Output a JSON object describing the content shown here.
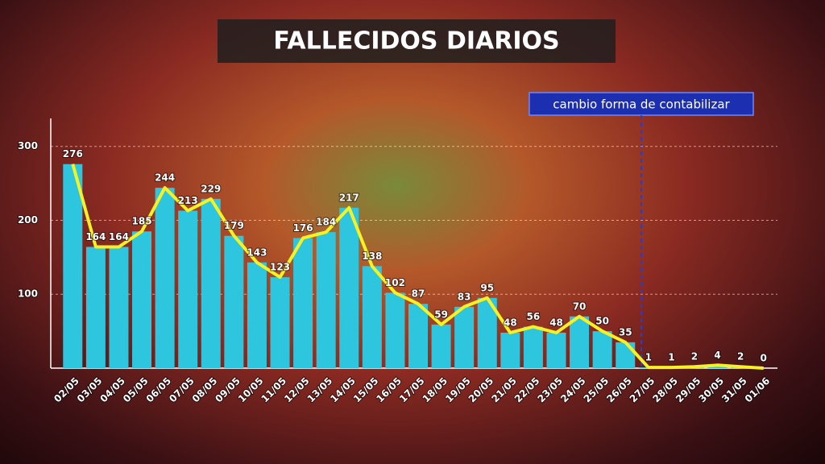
{
  "chart_data": {
    "type": "bar",
    "title": "FALLECIDOS DIARIOS",
    "annotation": "cambio forma de contabilizar",
    "categories": [
      "02/05",
      "03/05",
      "04/05",
      "05/05",
      "06/05",
      "07/05",
      "08/05",
      "09/05",
      "10/05",
      "11/05",
      "12/05",
      "13/05",
      "14/05",
      "15/05",
      "16/05",
      "17/05",
      "18/05",
      "19/05",
      "20/05",
      "21/05",
      "22/05",
      "23/05",
      "24/05",
      "25/05",
      "26/05",
      "27/05",
      "28/05",
      "29/05",
      "30/05",
      "31/05",
      "01/06"
    ],
    "values": [
      276,
      164,
      164,
      185,
      244,
      213,
      229,
      179,
      143,
      123,
      176,
      184,
      217,
      138,
      102,
      87,
      59,
      83,
      95,
      48,
      56,
      48,
      70,
      50,
      35,
      1,
      1,
      2,
      4,
      2,
      0
    ],
    "color": "#2ec6de",
    "line_color": "#f4f224",
    "ylim": [
      0,
      340
    ],
    "yticks": [
      100,
      200,
      300
    ],
    "grid": true
  }
}
